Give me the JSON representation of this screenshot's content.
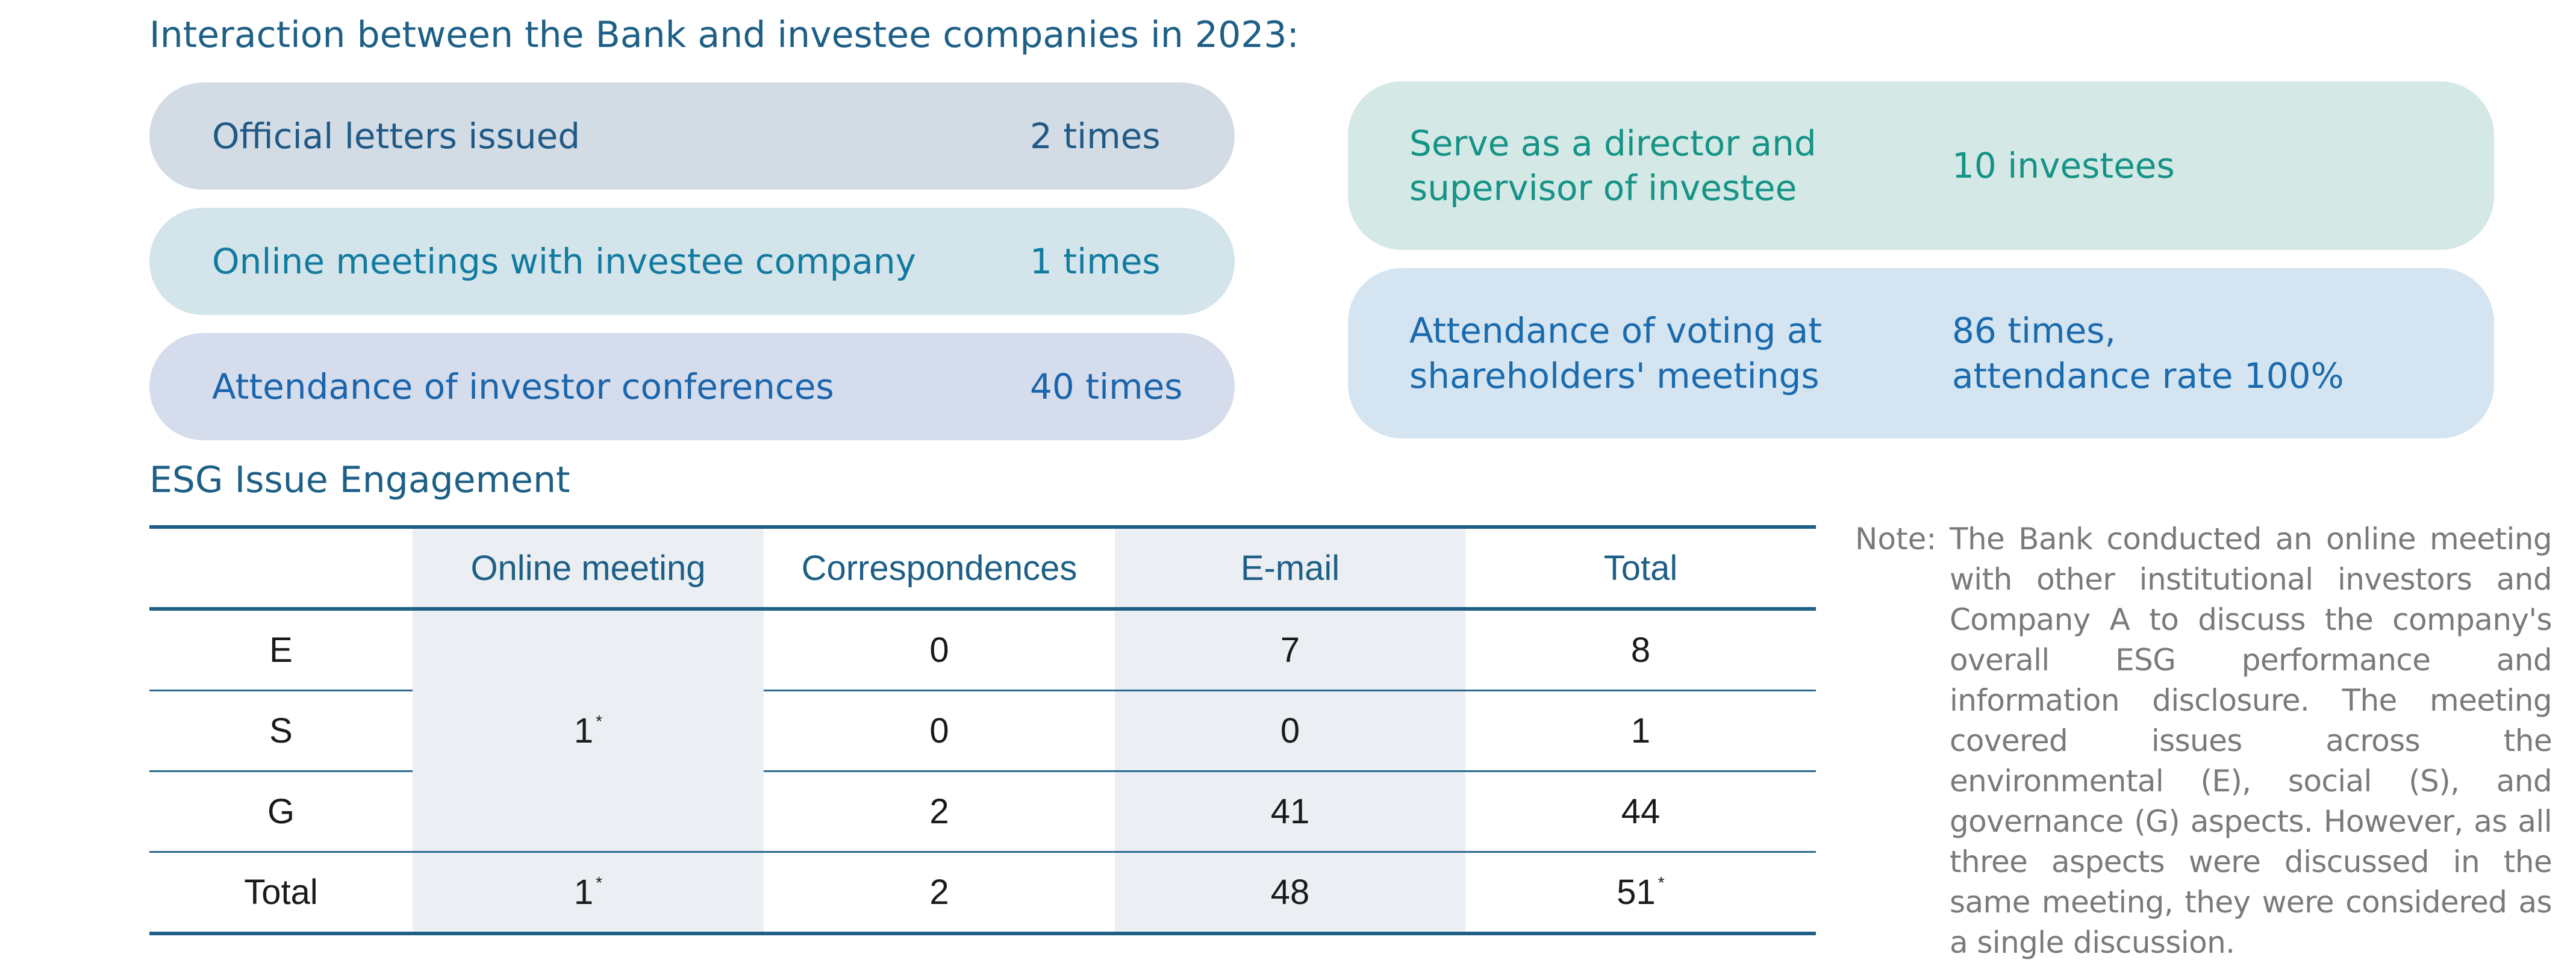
{
  "interaction": {
    "heading": "Interaction between the Bank and investee companies in 2023:",
    "left_items": [
      {
        "label": "Official letters issued",
        "value": "2 times"
      },
      {
        "label": "Online meetings with investee company",
        "value": "1 times"
      },
      {
        "label": "Attendance of investor conferences",
        "value": "40 times"
      }
    ],
    "right_items": [
      {
        "label_line1": "Serve as a director and",
        "label_line2": "supervisor of investee",
        "value_line1": "10 investees",
        "value_line2": ""
      },
      {
        "label_line1": "Attendance of voting at",
        "label_line2": "shareholders' meetings",
        "value_line1": "86 times,",
        "value_line2": "attendance rate 100%"
      }
    ]
  },
  "esg": {
    "heading": "ESG Issue Engagement",
    "columns": [
      "",
      "Online meeting",
      "Correspondences",
      "E-mail",
      "Total"
    ],
    "online_meeting_merged": "1",
    "superscript_mark": "*",
    "rows": [
      {
        "label": "E",
        "correspondences": "0",
        "email": "7",
        "total": "8"
      },
      {
        "label": "S",
        "correspondences": "0",
        "email": "0",
        "total": "1"
      },
      {
        "label": "G",
        "correspondences": "2",
        "email": "41",
        "total": "44"
      }
    ],
    "total_row": {
      "label": "Total",
      "online_meeting": "1",
      "correspondences": "2",
      "email": "48",
      "total": "51"
    }
  },
  "note": {
    "label": "Note:",
    "text": "The Bank conducted an online meeting with other institutional investors and Company A to discuss the company's overall ESG performance and information disclosure. The meeting covered issues across the environmental (E), social (S), and governance (G) aspects. However, as all three aspects were discussed in the same meeting, they were considered as a single discussion."
  },
  "colors": {
    "heading": "#1d5f86",
    "pill_grey": "#d3dbe5",
    "pill_teal": "#d4e8e5",
    "pill_blue": "#d4e5f1",
    "table_rule": "#1e5f85",
    "table_shade": "#ebeef2",
    "note_text": "#7a7a7a"
  }
}
